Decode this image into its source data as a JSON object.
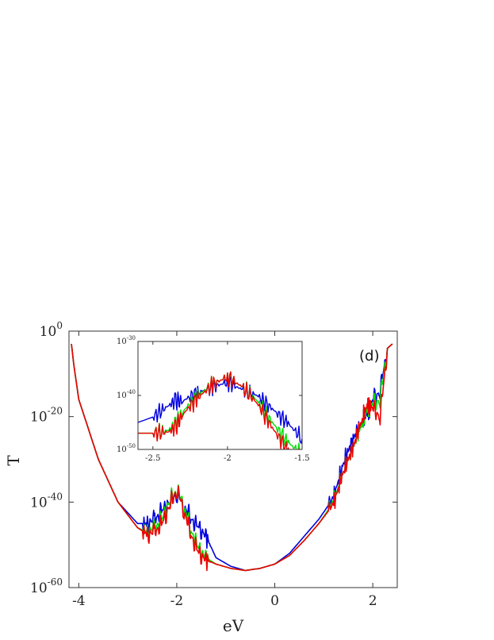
{
  "chart_data": [
    {
      "type": "line",
      "scale_y": "log",
      "xlabel": "eV",
      "ylabel": "T",
      "panel_label": "(d)",
      "xlim": [
        -4.2,
        2.5
      ],
      "ylog_lim": [
        -60,
        0
      ],
      "x_ticks": [
        -4,
        -2,
        0,
        2
      ],
      "x_tick_labels": [
        "-4",
        "-2",
        "0",
        "2"
      ],
      "y_ticks": [
        {
          "base": "10",
          "exp": "0"
        },
        {
          "base": "10",
          "exp": "-20"
        },
        {
          "base": "10",
          "exp": "-40"
        },
        {
          "base": "10",
          "exp": "-60"
        }
      ],
      "series": [
        {
          "color": "#0000dd",
          "x": [
            -4.15,
            -4.1,
            -4.0,
            -3.6,
            -3.2,
            -2.8,
            -2.6,
            -2.45,
            -2.3,
            -2.15,
            -2.0,
            -1.85,
            -1.7,
            -1.55,
            -1.4,
            -1.2,
            -0.9,
            -0.6,
            -0.3,
            0.0,
            0.3,
            0.6,
            0.9,
            1.2,
            1.4,
            1.6,
            1.8,
            1.9,
            2.0,
            2.15,
            2.3,
            2.4
          ],
          "y": [
            -3,
            -8,
            -16,
            -30,
            -40,
            -45,
            -45,
            -44,
            -42,
            -40,
            -38,
            -41,
            -44,
            -46,
            -48,
            -53,
            -55,
            -56,
            -55.5,
            -54.5,
            -52,
            -48,
            -44,
            -39,
            -31,
            -25,
            -21,
            -19,
            -16,
            -14,
            -4,
            -3
          ]
        },
        {
          "color": "#00dd00",
          "x": [
            -4.15,
            -4.1,
            -4.0,
            -3.6,
            -3.2,
            -2.8,
            -2.6,
            -2.45,
            -2.3,
            -2.15,
            -2.0,
            -1.85,
            -1.7,
            -1.55,
            -1.4,
            -1.2,
            -0.9,
            -0.6,
            -0.3,
            0.0,
            0.3,
            0.6,
            0.9,
            1.2,
            1.4,
            1.6,
            1.8,
            1.9,
            2.0,
            2.15,
            2.3,
            2.4
          ],
          "y": [
            -3,
            -8,
            -16,
            -30,
            -40,
            -46,
            -47,
            -46,
            -44,
            -40,
            -37,
            -41,
            -47,
            -51,
            -53,
            -54.5,
            -55.5,
            -56,
            -55.5,
            -54.5,
            -52.5,
            -49,
            -45,
            -40,
            -33,
            -27,
            -21,
            -18,
            -17,
            -16,
            -4,
            -3
          ]
        },
        {
          "color": "#ee0000",
          "x": [
            -4.15,
            -4.1,
            -4.0,
            -3.6,
            -3.2,
            -2.8,
            -2.6,
            -2.45,
            -2.3,
            -2.15,
            -2.0,
            -1.85,
            -1.7,
            -1.55,
            -1.4,
            -1.2,
            -0.9,
            -0.6,
            -0.3,
            0.0,
            0.3,
            0.6,
            0.9,
            1.2,
            1.4,
            1.6,
            1.8,
            1.9,
            2.0,
            2.15,
            2.3,
            2.4
          ],
          "y": [
            -3,
            -8,
            -16,
            -30,
            -40,
            -46,
            -47.5,
            -47,
            -45,
            -41,
            -37,
            -42,
            -48,
            -52,
            -53.5,
            -54.5,
            -55.5,
            -56,
            -55.5,
            -54.5,
            -52.5,
            -49,
            -45,
            -40.5,
            -33,
            -27,
            -20,
            -17,
            -18,
            -20,
            -4,
            -3
          ]
        }
      ]
    },
    {
      "type": "line",
      "scale_y": "log",
      "xlim": [
        -2.6,
        -1.5
      ],
      "ylog_lim": [
        -50,
        -30
      ],
      "x_ticks": [
        -2.5,
        -2,
        -1.5
      ],
      "x_tick_labels": [
        "-2.5",
        "-2",
        "-1.5"
      ],
      "y_ticks": [
        {
          "base": "10",
          "exp": "-30"
        },
        {
          "base": "10",
          "exp": "-40"
        },
        {
          "base": "10",
          "exp": "-50"
        }
      ],
      "series": [
        {
          "color": "#0000dd",
          "x": [
            -2.6,
            -2.5,
            -2.4,
            -2.35,
            -2.3,
            -2.2,
            -2.1,
            -2.0,
            -1.9,
            -1.8,
            -1.7,
            -1.6,
            -1.5
          ],
          "y": [
            -45,
            -44,
            -42,
            -41,
            -41,
            -39.5,
            -38.5,
            -37.5,
            -39,
            -40,
            -42.5,
            -45,
            -48
          ]
        },
        {
          "color": "#00dd00",
          "x": [
            -2.6,
            -2.5,
            -2.4,
            -2.35,
            -2.3,
            -2.2,
            -2.1,
            -2.0,
            -1.9,
            -1.8,
            -1.7,
            -1.6,
            -1.5
          ],
          "y": [
            -47,
            -47,
            -46.5,
            -45.5,
            -43,
            -40,
            -38,
            -36.5,
            -38.5,
            -41,
            -45,
            -48.5,
            -51
          ]
        },
        {
          "color": "#ee0000",
          "x": [
            -2.6,
            -2.5,
            -2.4,
            -2.35,
            -2.3,
            -2.2,
            -2.1,
            -2.0,
            -1.9,
            -1.8,
            -1.7,
            -1.6,
            -1.5
          ],
          "y": [
            -47,
            -47,
            -46.8,
            -46,
            -43.5,
            -40.5,
            -38,
            -36.5,
            -38.5,
            -41.5,
            -46,
            -50,
            -52
          ]
        }
      ]
    }
  ]
}
